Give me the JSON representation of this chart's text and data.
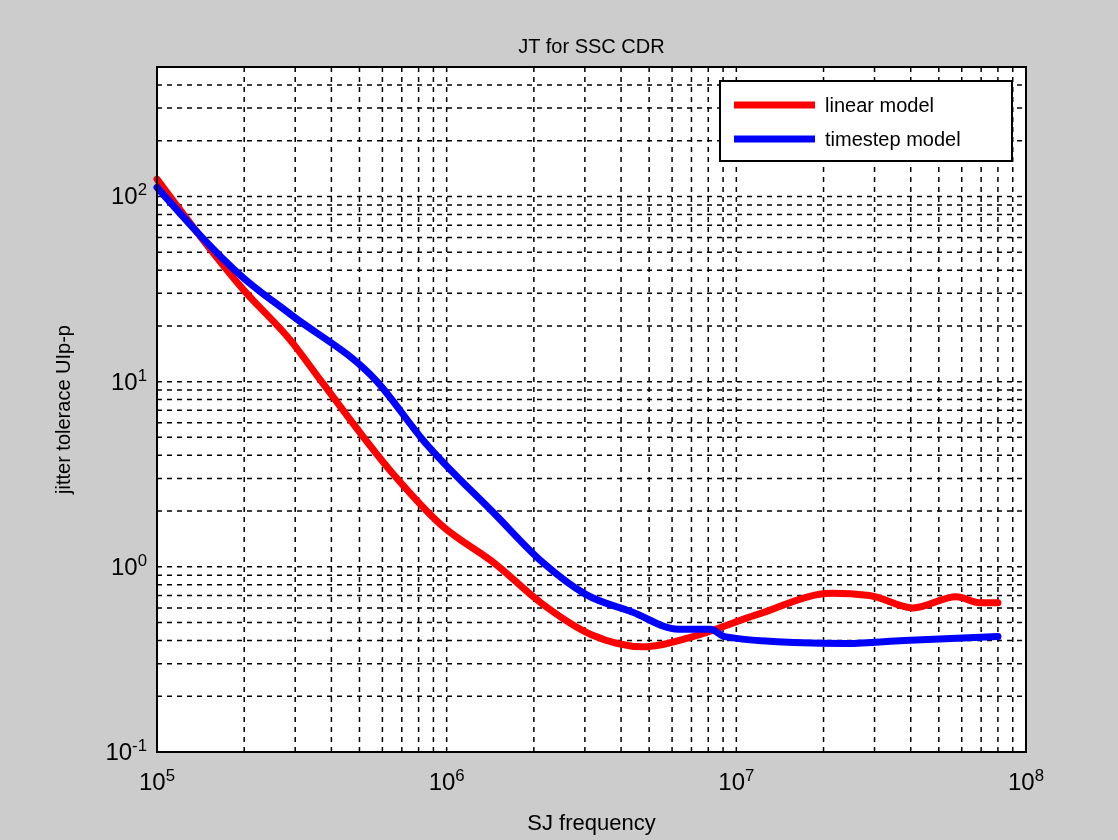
{
  "chart_data": {
    "type": "line",
    "title": "JT for SSC CDR",
    "xlabel": "SJ frequency",
    "ylabel": "jitter tolerace UIp-p",
    "log": "xy",
    "grid": true,
    "legend": "top right",
    "line_style": "solid",
    "marker": "none",
    "xlim": [
      100000,
      100000000
    ],
    "ylim": [
      0.1,
      500
    ],
    "xticks": [
      {
        "value": 100000,
        "label": "10$^{5}$"
      },
      {
        "value": 1000000,
        "label": "10$^{6}$"
      },
      {
        "value": 10000000,
        "label": "10$^{7}$"
      },
      {
        "value": 100000000,
        "label": "10$^{8}$"
      }
    ],
    "yticks": [
      {
        "value": 0.1,
        "label": "10$^{-1}$"
      },
      {
        "value": 1,
        "label": "10$^{0}$"
      },
      {
        "value": 10,
        "label": "10$^{1}$"
      },
      {
        "value": 100,
        "label": "10$^{2}$"
      }
    ],
    "series": [
      {
        "name": "linear model",
        "color": "#ff0000",
        "x": [
          100000,
          200000,
          290000,
          370000,
          650000,
          950000,
          1480000,
          2140000,
          3160000,
          4790000,
          7080000,
          11700000,
          21400000,
          28800000,
          40700000,
          57500000,
          69200000,
          80000000
        ],
        "values": [
          124,
          31,
          16.6,
          10,
          3.2,
          1.7,
          1.03,
          0.63,
          0.43,
          0.37,
          0.42,
          0.55,
          0.72,
          0.7,
          0.6,
          0.69,
          0.64,
          0.64
        ]
      },
      {
        "name": "timestep model",
        "color": "#0000ff",
        "x": [
          100000,
          200000,
          290000,
          575000,
          832000,
          1480000,
          2140000,
          3020000,
          4370000,
          6310000,
          8130000,
          9120000,
          15800000,
          24000000,
          38000000,
          80000000
        ],
        "values": [
          112,
          36,
          23,
          10,
          4.8,
          1.9,
          1.06,
          0.71,
          0.57,
          0.46,
          0.46,
          0.42,
          0.39,
          0.385,
          0.4,
          0.42
        ]
      }
    ]
  }
}
